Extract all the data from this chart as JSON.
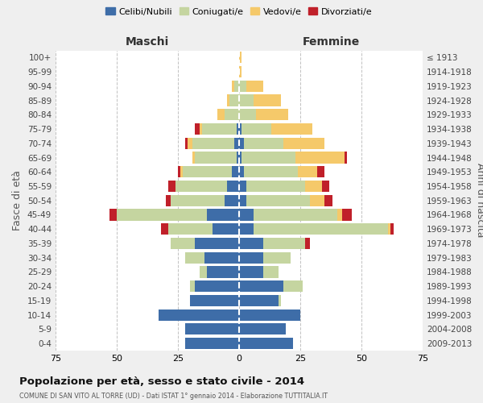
{
  "age_groups": [
    "0-4",
    "5-9",
    "10-14",
    "15-19",
    "20-24",
    "25-29",
    "30-34",
    "35-39",
    "40-44",
    "45-49",
    "50-54",
    "55-59",
    "60-64",
    "65-69",
    "70-74",
    "75-79",
    "80-84",
    "85-89",
    "90-94",
    "95-99",
    "100+"
  ],
  "birth_years": [
    "2009-2013",
    "2004-2008",
    "1999-2003",
    "1994-1998",
    "1989-1993",
    "1984-1988",
    "1979-1983",
    "1974-1978",
    "1969-1973",
    "1964-1968",
    "1959-1963",
    "1954-1958",
    "1949-1953",
    "1944-1948",
    "1939-1943",
    "1934-1938",
    "1929-1933",
    "1924-1928",
    "1919-1923",
    "1914-1918",
    "≤ 1913"
  ],
  "colors": {
    "celibi": "#3E6DA8",
    "coniugati": "#C5D5A0",
    "vedovi": "#F5C96A",
    "divorziati": "#C0202A"
  },
  "males": {
    "celibi": [
      22,
      22,
      33,
      20,
      18,
      13,
      14,
      18,
      11,
      13,
      6,
      5,
      3,
      1,
      2,
      1,
      0,
      0,
      0,
      0,
      0
    ],
    "coniugati": [
      0,
      0,
      0,
      0,
      2,
      3,
      8,
      10,
      18,
      37,
      22,
      21,
      20,
      17,
      17,
      14,
      6,
      4,
      2,
      0,
      0
    ],
    "vedovi": [
      0,
      0,
      0,
      0,
      0,
      0,
      0,
      0,
      0,
      0,
      0,
      0,
      1,
      1,
      2,
      1,
      3,
      1,
      1,
      0,
      0
    ],
    "divorziati": [
      0,
      0,
      0,
      0,
      0,
      0,
      0,
      0,
      3,
      3,
      2,
      3,
      1,
      0,
      1,
      2,
      0,
      0,
      0,
      0,
      0
    ]
  },
  "females": {
    "nubili": [
      22,
      19,
      25,
      16,
      18,
      10,
      10,
      10,
      6,
      6,
      3,
      3,
      2,
      1,
      2,
      1,
      0,
      0,
      0,
      0,
      0
    ],
    "coniugate": [
      0,
      0,
      0,
      1,
      8,
      6,
      11,
      17,
      55,
      34,
      26,
      24,
      22,
      22,
      16,
      12,
      7,
      6,
      3,
      0,
      0
    ],
    "vedove": [
      0,
      0,
      0,
      0,
      0,
      0,
      0,
      0,
      1,
      2,
      6,
      7,
      8,
      20,
      17,
      17,
      13,
      11,
      7,
      1,
      1
    ],
    "divorziate": [
      0,
      0,
      0,
      0,
      0,
      0,
      0,
      2,
      1,
      4,
      3,
      3,
      3,
      1,
      0,
      0,
      0,
      0,
      0,
      0,
      0
    ]
  },
  "xlim": 75,
  "title": "Popolazione per età, sesso e stato civile - 2014",
  "subtitle": "COMUNE DI SAN VITO AL TORRE (UD) - Dati ISTAT 1° gennaio 2014 - Elaborazione TUTTITALIA.IT",
  "ylabel_left": "Fasce di età",
  "ylabel_right": "Anni di nascita",
  "label_maschi": "Maschi",
  "label_femmine": "Femmine",
  "legend_labels": [
    "Celibi/Nubili",
    "Coniugati/e",
    "Vedovi/e",
    "Divorziati/e"
  ],
  "bg_color": "#EFEFEF",
  "plot_bg": "#FFFFFF"
}
